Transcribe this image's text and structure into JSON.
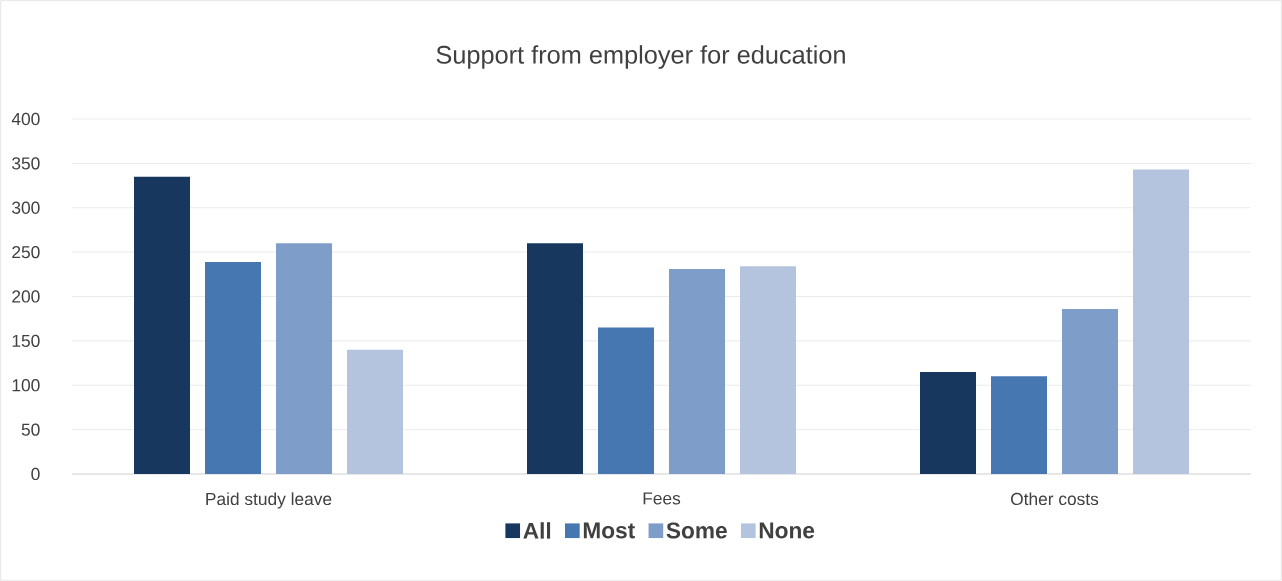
{
  "chart_data": {
    "type": "bar",
    "title": "Support from employer for education",
    "categories": [
      "Paid study leave",
      "Fees",
      "Other costs"
    ],
    "series": [
      {
        "name": "All",
        "color": "#17375e",
        "values": [
          335,
          260,
          115
        ]
      },
      {
        "name": "Most",
        "color": "#4677b0",
        "values": [
          239,
          165,
          110
        ]
      },
      {
        "name": "Some",
        "color": "#7f9dc9",
        "values": [
          260,
          231,
          186
        ]
      },
      {
        "name": "None",
        "color": "#b4c3de",
        "values": [
          140,
          234,
          343
        ]
      }
    ],
    "ylim": [
      0,
      400
    ],
    "yticks": [
      0,
      50,
      100,
      150,
      200,
      250,
      300,
      350,
      400
    ],
    "grid": "y",
    "legend": "bottom"
  }
}
